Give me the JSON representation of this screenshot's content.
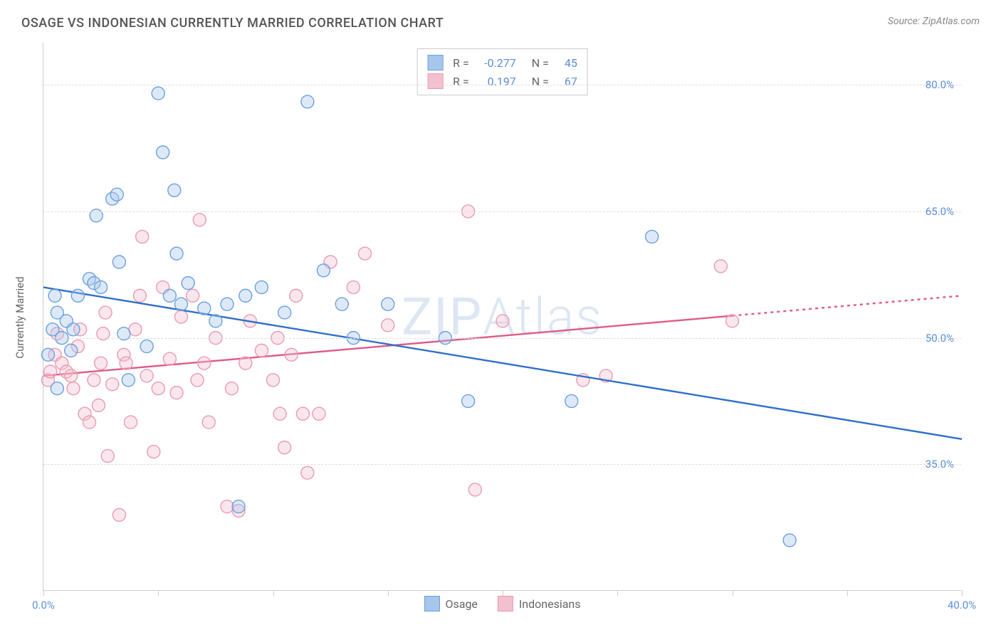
{
  "title": "OSAGE VS INDONESIAN CURRENTLY MARRIED CORRELATION CHART",
  "source": "Source: ZipAtlas.com",
  "ylabel": "Currently Married",
  "watermark_bold": "ZIP",
  "watermark_thin": "Atlas",
  "chart": {
    "type": "scatter",
    "background_color": "#ffffff",
    "grid_color": "#dddddd",
    "axis_color": "#cccccc",
    "tick_label_color": "#5b8fd6",
    "xlim": [
      0,
      40
    ],
    "ylim": [
      20,
      85
    ],
    "yticks": [
      35.0,
      50.0,
      65.0,
      80.0
    ],
    "ytick_labels": [
      "35.0%",
      "50.0%",
      "65.0%",
      "80.0%"
    ],
    "xticks": [
      0,
      5,
      10,
      15,
      20,
      25,
      30,
      35,
      40
    ],
    "xtick_labels": {
      "0": "0.0%",
      "40": "40.0%"
    },
    "marker_radius": 9,
    "marker_fill_opacity": 0.38,
    "marker_stroke_width": 1.4,
    "line_width": 2.4,
    "series": [
      {
        "name": "Osage",
        "color_stroke": "#6aa0e0",
        "color_fill": "#a7c6ec",
        "line_color": "#2f6fc9",
        "R": "-0.277",
        "N": "45",
        "trend": {
          "x1": 0,
          "y1": 56,
          "x2": 40,
          "y2": 38
        },
        "trend_dash_from_x": null,
        "points": [
          [
            0.2,
            48
          ],
          [
            0.4,
            51
          ],
          [
            0.5,
            55
          ],
          [
            0.6,
            53
          ],
          [
            0.6,
            44
          ],
          [
            0.8,
            50
          ],
          [
            1.0,
            52
          ],
          [
            1.2,
            48.5
          ],
          [
            1.3,
            51
          ],
          [
            1.5,
            55
          ],
          [
            2.0,
            57
          ],
          [
            2.2,
            56.5
          ],
          [
            2.3,
            64.5
          ],
          [
            2.5,
            56
          ],
          [
            3.0,
            66.5
          ],
          [
            3.2,
            67
          ],
          [
            3.3,
            59
          ],
          [
            3.5,
            50.5
          ],
          [
            3.7,
            45
          ],
          [
            4.5,
            49
          ],
          [
            5.0,
            79
          ],
          [
            5.2,
            72
          ],
          [
            5.5,
            55
          ],
          [
            5.7,
            67.5
          ],
          [
            5.8,
            60
          ],
          [
            6.0,
            54
          ],
          [
            6.3,
            56.5
          ],
          [
            7.0,
            53.5
          ],
          [
            7.5,
            52
          ],
          [
            8.0,
            54
          ],
          [
            8.5,
            30
          ],
          [
            8.8,
            55
          ],
          [
            9.5,
            56
          ],
          [
            10.5,
            53
          ],
          [
            11.5,
            78
          ],
          [
            12.2,
            58
          ],
          [
            13.0,
            54
          ],
          [
            13.5,
            50
          ],
          [
            15.0,
            54
          ],
          [
            17.5,
            50
          ],
          [
            18.5,
            42.5
          ],
          [
            23.0,
            42.5
          ],
          [
            26.5,
            62
          ],
          [
            32.5,
            26
          ]
        ]
      },
      {
        "name": "Indonesians",
        "color_stroke": "#e99bb0",
        "color_fill": "#f3c0cf",
        "line_color": "#e05a85",
        "R": "0.197",
        "N": "67",
        "trend": {
          "x1": 0,
          "y1": 45.5,
          "x2": 40,
          "y2": 55
        },
        "trend_dash_from_x": 30,
        "points": [
          [
            0.2,
            45
          ],
          [
            0.3,
            46
          ],
          [
            0.5,
            48
          ],
          [
            0.6,
            50.5
          ],
          [
            0.8,
            47
          ],
          [
            1.0,
            46
          ],
          [
            1.2,
            45.5
          ],
          [
            1.3,
            44
          ],
          [
            1.5,
            49
          ],
          [
            1.6,
            51
          ],
          [
            1.8,
            41
          ],
          [
            2.0,
            40
          ],
          [
            2.2,
            45
          ],
          [
            2.4,
            42
          ],
          [
            2.5,
            47
          ],
          [
            2.6,
            50.5
          ],
          [
            2.7,
            53
          ],
          [
            2.8,
            36
          ],
          [
            3.0,
            44.5
          ],
          [
            3.3,
            29
          ],
          [
            3.5,
            48
          ],
          [
            3.6,
            47
          ],
          [
            3.8,
            40
          ],
          [
            4.0,
            51
          ],
          [
            4.2,
            55
          ],
          [
            4.3,
            62
          ],
          [
            4.5,
            45.5
          ],
          [
            4.8,
            36.5
          ],
          [
            5.0,
            44
          ],
          [
            5.2,
            56
          ],
          [
            5.5,
            47.5
          ],
          [
            5.8,
            43.5
          ],
          [
            6.0,
            52.5
          ],
          [
            6.5,
            55
          ],
          [
            6.7,
            45
          ],
          [
            6.8,
            64
          ],
          [
            7.0,
            47
          ],
          [
            7.2,
            40
          ],
          [
            7.5,
            50
          ],
          [
            8.0,
            30
          ],
          [
            8.2,
            44
          ],
          [
            8.5,
            29.5
          ],
          [
            8.8,
            47
          ],
          [
            9.0,
            52
          ],
          [
            9.5,
            48.5
          ],
          [
            10.0,
            45
          ],
          [
            10.2,
            50
          ],
          [
            10.3,
            41
          ],
          [
            10.5,
            37
          ],
          [
            10.8,
            48
          ],
          [
            11.0,
            55
          ],
          [
            11.3,
            41
          ],
          [
            11.5,
            34
          ],
          [
            12.0,
            41
          ],
          [
            12.5,
            59
          ],
          [
            13.5,
            56
          ],
          [
            14.0,
            60
          ],
          [
            15.0,
            51.5
          ],
          [
            18.5,
            65
          ],
          [
            18.8,
            32
          ],
          [
            20.0,
            52
          ],
          [
            23.5,
            45
          ],
          [
            24.5,
            45.5
          ],
          [
            29.5,
            58.5
          ],
          [
            30.0,
            52
          ]
        ]
      }
    ]
  },
  "legend_bottom": [
    {
      "label": "Osage",
      "swatch_fill": "#a7c6ec",
      "swatch_stroke": "#6aa0e0"
    },
    {
      "label": "Indonesians",
      "swatch_fill": "#f3c0cf",
      "swatch_stroke": "#e99bb0"
    }
  ]
}
